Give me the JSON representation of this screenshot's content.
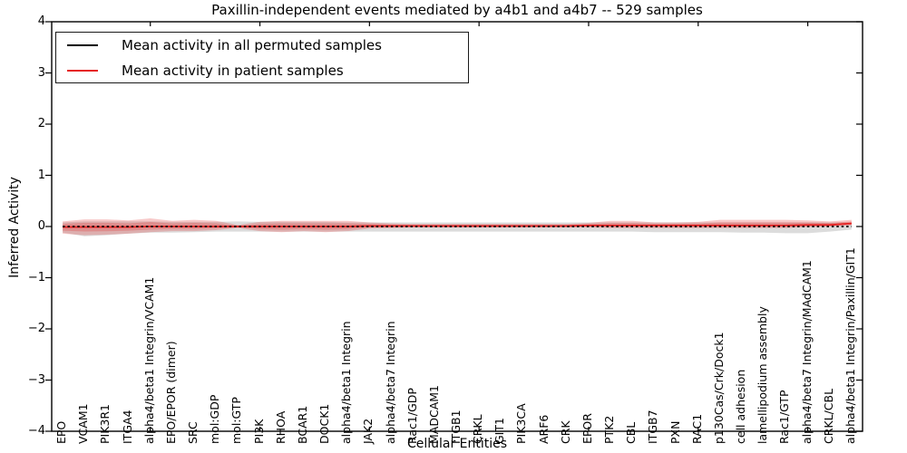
{
  "chart_data": {
    "type": "line",
    "title": "Paxillin-independent events mediated by a4b1 and a4b7 -- 529 samples",
    "xlabel": "Cellular Entities",
    "ylabel": "Inferred Activity",
    "ylim": [
      -4,
      4
    ],
    "ytick_labels": [
      "4",
      "3",
      "2",
      "1",
      "0",
      "−1",
      "−2",
      "−3",
      "−4"
    ],
    "ytick_values": [
      4,
      3,
      2,
      1,
      0,
      -1,
      -2,
      -3,
      -4
    ],
    "grid": false,
    "legend_position": "upper left",
    "categories": [
      "EPO",
      "VCAM1",
      "PIK3R1",
      "ITGA4",
      "alpha4/beta1 Integrin/VCAM1",
      "EPO/EPOR (dimer)",
      "SRC",
      "mol:GDP",
      "mol:GTP",
      "PI3K",
      "RHOA",
      "BCAR1",
      "DOCK1",
      "alpha4/beta1 Integrin",
      "JAK2",
      "alpha4/beta7 Integrin",
      "Rac1/GDP",
      "MADCAM1",
      "ITGB1",
      "CRKL",
      "GIT1",
      "PIK3CA",
      "ARF6",
      "CRK",
      "EPOR",
      "PTK2",
      "CBL",
      "ITGB7",
      "PXN",
      "RAC1",
      "p130Cas/Crk/Dock1",
      "cell adhesion",
      "lamellipodium assembly",
      "Rac1/GTP",
      "alpha4/beta7 Integrin/MAdCAM1",
      "CRKL/CBL",
      "alpha4/beta1 Integrin/Paxillin/GIT1"
    ],
    "series": [
      {
        "name": "Mean activity in all permuted samples",
        "color": "#000000",
        "style": "dotted",
        "values": [
          0,
          0,
          0,
          0,
          0,
          0,
          0,
          0,
          0,
          0,
          0,
          0,
          0,
          0,
          0,
          0,
          0,
          0,
          0,
          0,
          0,
          0,
          0,
          0,
          0,
          0,
          0,
          0,
          0,
          0,
          0,
          0,
          0,
          0,
          0,
          0,
          0
        ]
      },
      {
        "name": "Mean activity in patient samples",
        "color": "#e62222",
        "style": "solid",
        "values": [
          -0.01,
          -0.01,
          -0.01,
          -0.01,
          0.0,
          0.0,
          0.0,
          0.0,
          0.0,
          0.0,
          0.0,
          0.0,
          0.0,
          0.0,
          0.01,
          0.01,
          0.01,
          0.01,
          0.01,
          0.01,
          0.01,
          0.01,
          0.01,
          0.01,
          0.02,
          0.02,
          0.02,
          0.02,
          0.02,
          0.02,
          0.02,
          0.02,
          0.02,
          0.02,
          0.03,
          0.03,
          0.06
        ]
      }
    ],
    "bands": [
      {
        "name": "permuted-samples-range",
        "color": "#808080",
        "opacity": 0.28,
        "upper": [
          0.08,
          0.1,
          0.1,
          0.1,
          0.1,
          0.09,
          0.09,
          0.09,
          0.1,
          0.09,
          0.09,
          0.09,
          0.09,
          0.08,
          0.08,
          0.08,
          0.08,
          0.08,
          0.08,
          0.08,
          0.08,
          0.08,
          0.08,
          0.08,
          0.08,
          0.08,
          0.08,
          0.08,
          0.08,
          0.08,
          0.08,
          0.08,
          0.08,
          0.08,
          0.08,
          0.08,
          0.08
        ],
        "lower": [
          -0.12,
          -0.19,
          -0.17,
          -0.14,
          -0.12,
          -0.12,
          -0.11,
          -0.1,
          -0.1,
          -0.1,
          -0.1,
          -0.1,
          -0.1,
          -0.1,
          -0.1,
          -0.1,
          -0.1,
          -0.1,
          -0.1,
          -0.1,
          -0.1,
          -0.1,
          -0.1,
          -0.1,
          -0.1,
          -0.1,
          -0.1,
          -0.11,
          -0.11,
          -0.11,
          -0.11,
          -0.12,
          -0.12,
          -0.13,
          -0.13,
          -0.1,
          -0.06
        ]
      },
      {
        "name": "patient-samples-range",
        "color": "#e03030",
        "opacity": 0.26,
        "upper": [
          0.1,
          0.14,
          0.14,
          0.12,
          0.16,
          0.11,
          0.13,
          0.11,
          0.03,
          0.09,
          0.11,
          0.11,
          0.11,
          0.11,
          0.08,
          0.06,
          0.05,
          0.05,
          0.05,
          0.05,
          0.05,
          0.05,
          0.05,
          0.05,
          0.07,
          0.11,
          0.11,
          0.08,
          0.08,
          0.09,
          0.13,
          0.13,
          0.13,
          0.13,
          0.12,
          0.1,
          0.13
        ],
        "lower": [
          -0.14,
          -0.17,
          -0.16,
          -0.14,
          -0.11,
          -0.09,
          -0.09,
          -0.07,
          -0.03,
          -0.09,
          -0.11,
          -0.09,
          -0.11,
          -0.09,
          -0.04,
          -0.03,
          -0.02,
          -0.02,
          -0.02,
          -0.02,
          -0.02,
          -0.02,
          -0.02,
          -0.02,
          -0.02,
          -0.03,
          -0.03,
          -0.03,
          -0.03,
          -0.03,
          -0.03,
          -0.03,
          -0.03,
          -0.03,
          -0.01,
          0.0,
          0.02
        ]
      }
    ],
    "legend": {
      "entries": [
        {
          "label": "Mean activity in all permuted samples",
          "color": "#000000"
        },
        {
          "label": "Mean activity in patient samples",
          "color": "#e62222"
        }
      ]
    }
  }
}
